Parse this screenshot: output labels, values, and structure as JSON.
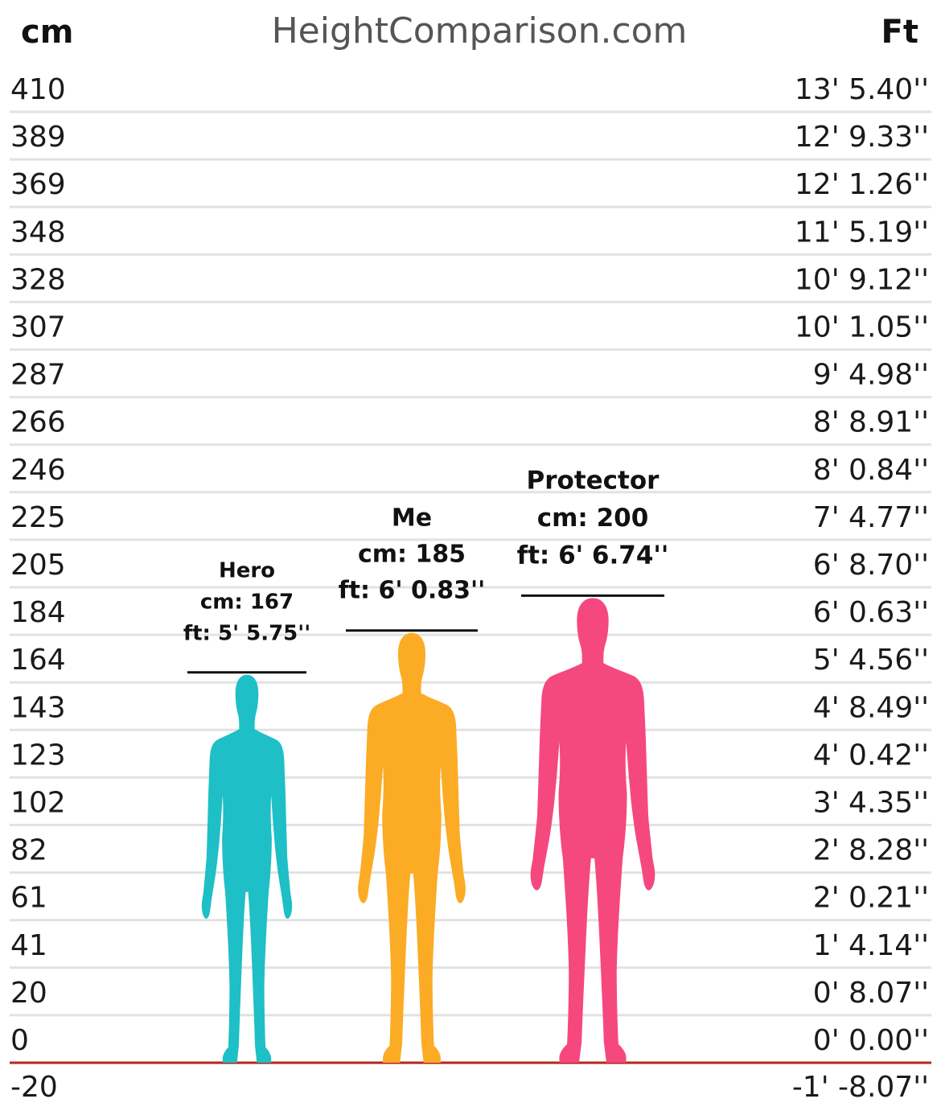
{
  "header": {
    "left_unit": "cm",
    "site": "HeightComparison.com",
    "right_unit": "Ft"
  },
  "chart_data": {
    "type": "bar",
    "title": "",
    "ylabel_left": "cm",
    "ylabel_right": "Ft",
    "ylim": [
      -20,
      410
    ],
    "ticks_cm": [
      "410",
      "389",
      "369",
      "348",
      "328",
      "307",
      "287",
      "266",
      "246",
      "225",
      "205",
      "184",
      "164",
      "143",
      "123",
      "102",
      "82",
      "61",
      "41",
      "20",
      "0",
      "-20"
    ],
    "ticks_ft": [
      "13' 5.40''",
      "12' 9.33''",
      "12' 1.26''",
      "11' 5.19''",
      "10' 9.12''",
      "10' 1.05''",
      "9' 4.98''",
      "8' 8.91''",
      "8' 0.84''",
      "7' 4.77''",
      "6' 8.70''",
      "6' 0.63''",
      "5' 4.56''",
      "4' 8.49''",
      "4' 0.42''",
      "3' 4.35''",
      "2' 8.28''",
      "2' 0.21''",
      "1' 4.14''",
      "0' 8.07''",
      "0' 0.00''",
      "-1' -8.07''"
    ],
    "grid": true,
    "categories": [
      "Hero",
      "Me",
      "Protector"
    ],
    "values": [
      167,
      185,
      200
    ],
    "people": [
      {
        "name": "Hero",
        "cm": 167,
        "cm_label": "cm: 167",
        "ft_label": "ft: 5' 5.75''",
        "color": "#1ebfc6"
      },
      {
        "name": "Me",
        "cm": 185,
        "cm_label": "cm: 185",
        "ft_label": "ft: 6' 0.83''",
        "color": "#fbab24"
      },
      {
        "name": "Protector",
        "cm": 200,
        "cm_label": "cm: 200",
        "ft_label": "ft: 6' 6.74''",
        "color": "#f5487f"
      }
    ]
  }
}
